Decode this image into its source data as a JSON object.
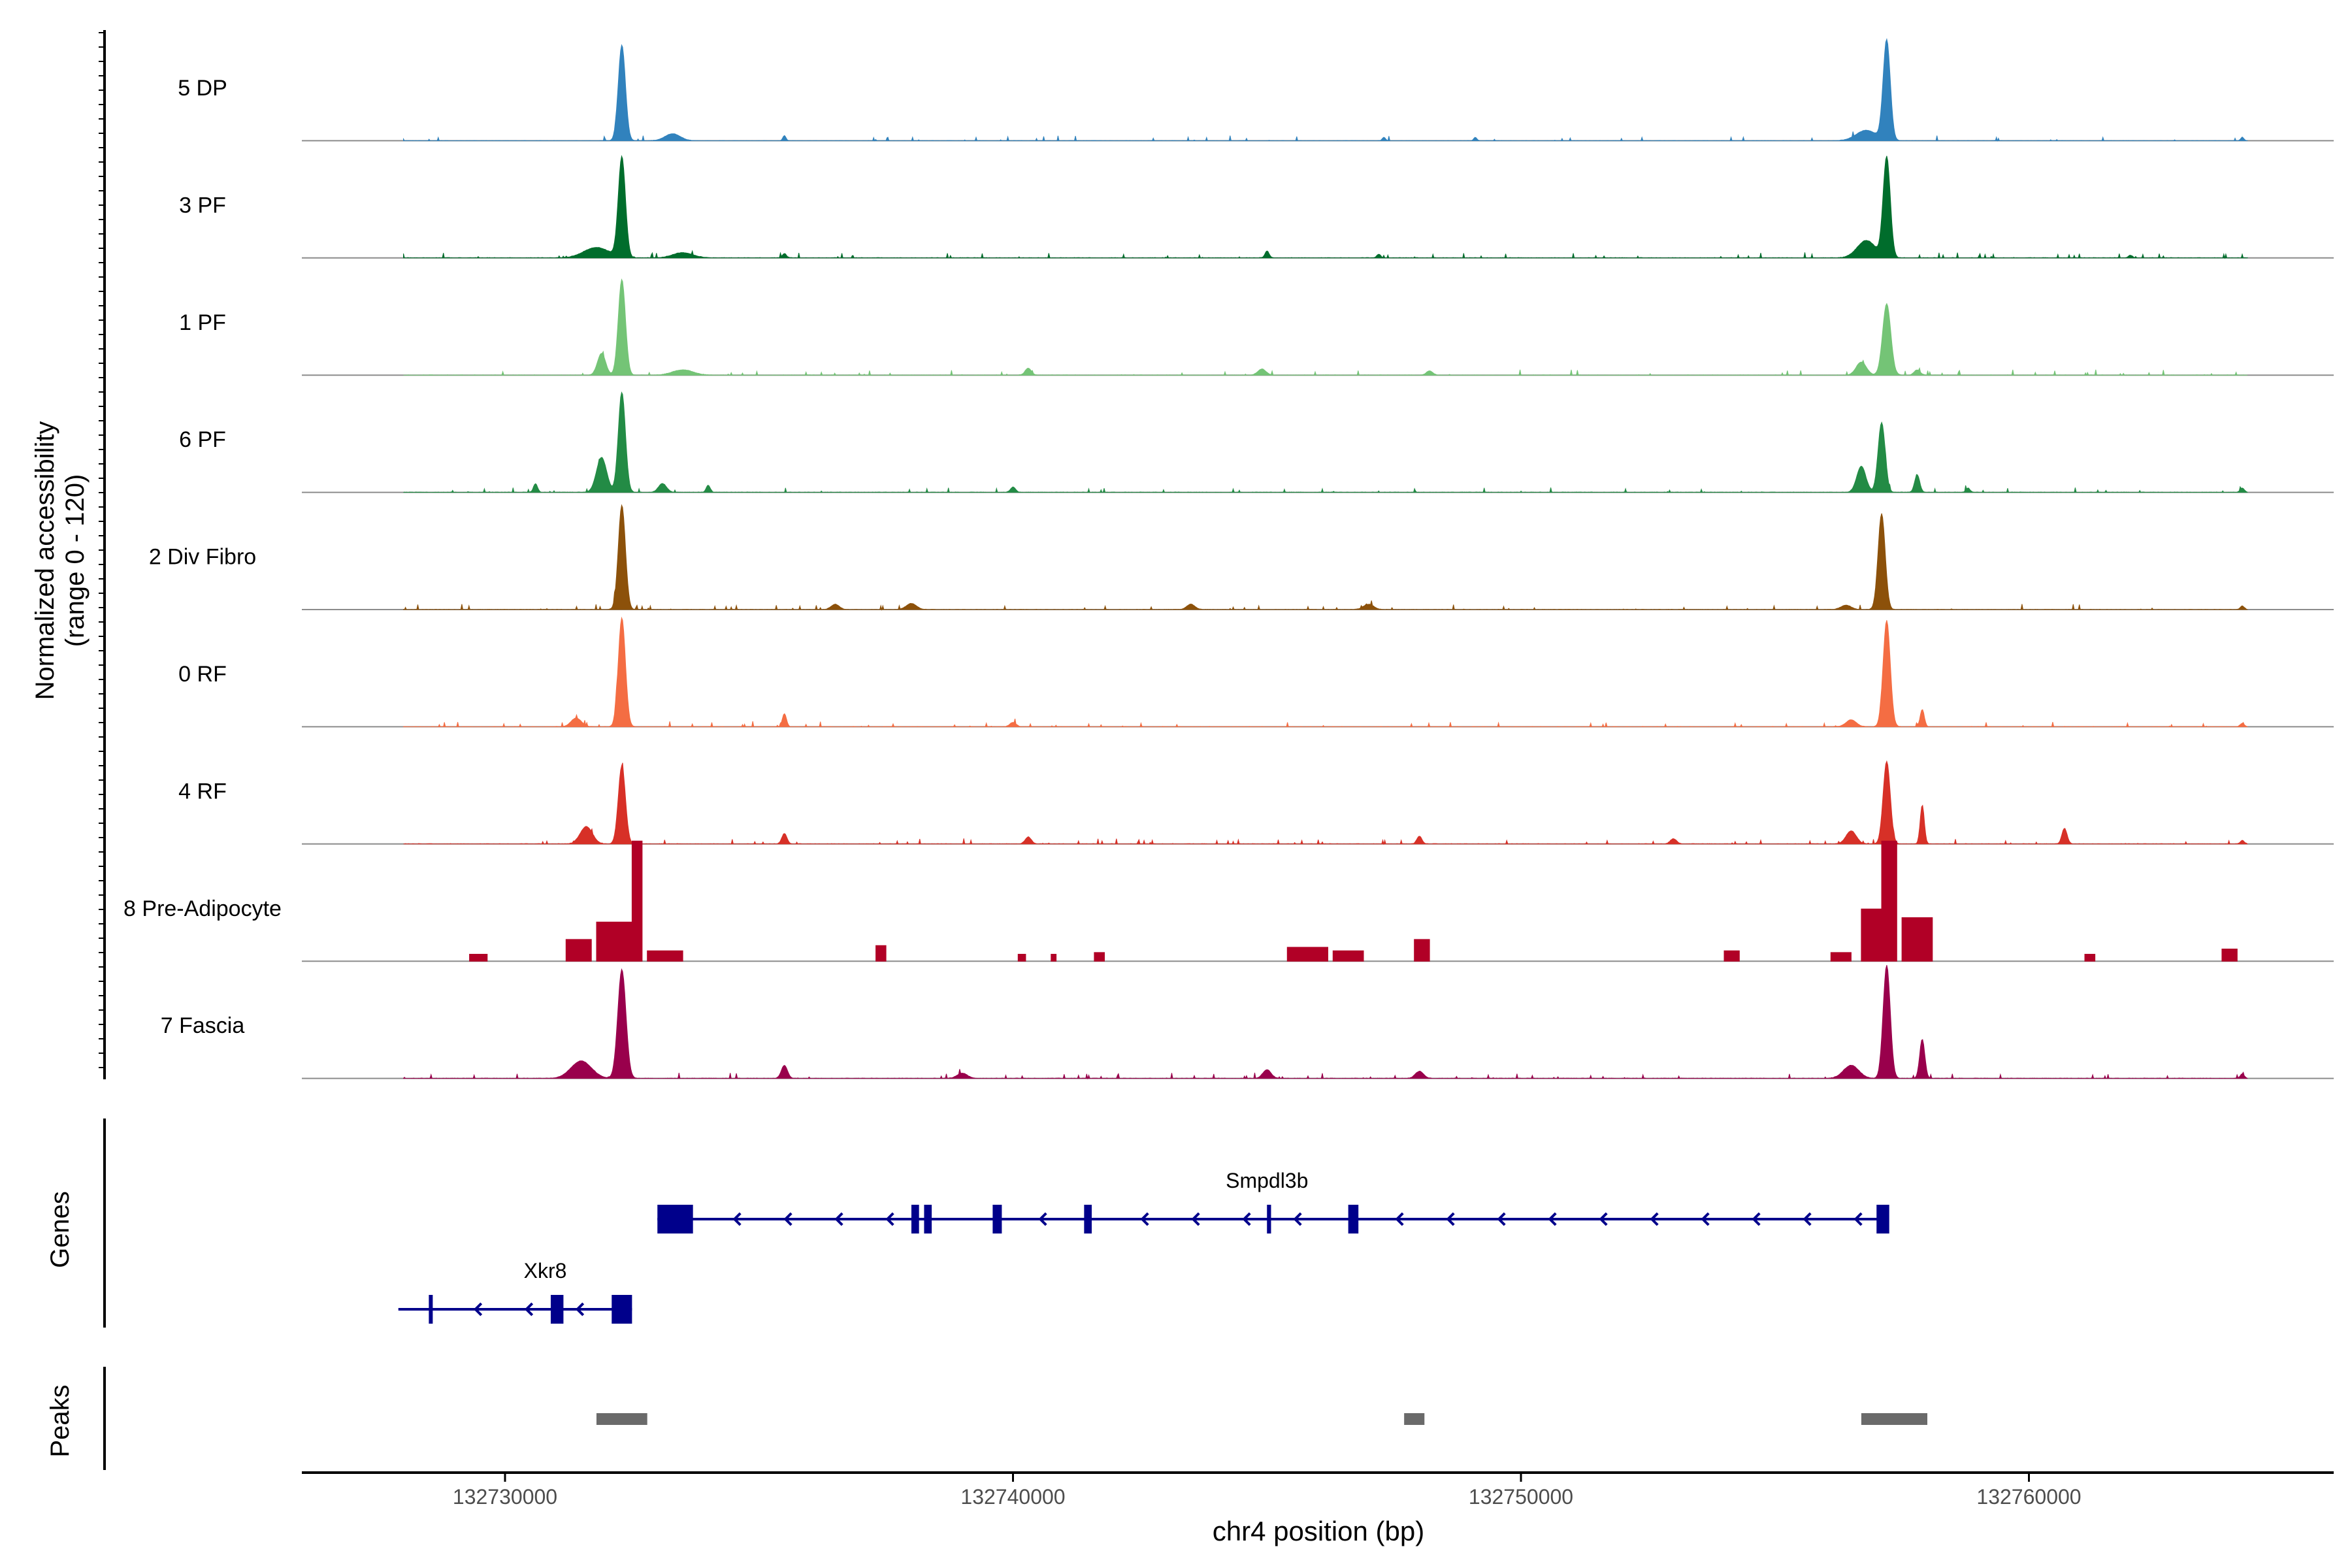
{
  "chart_data": {
    "type": "coverage",
    "title": "",
    "ylabel_line1": "Normalized accessibility",
    "ylabel_line2": "(range 0 - 120)",
    "xlabel": "chr4 position (bp)",
    "xlim": [
      132726000,
      132766000
    ],
    "xticks": [
      132730000,
      132740000,
      132750000,
      132760000
    ],
    "xtick_labels": [
      "132730000",
      "132740000",
      "132750000",
      "132760000"
    ],
    "ylim": [
      0,
      120
    ],
    "tracks": [
      {
        "name": "5 DP",
        "color": "#3182BD",
        "mode": "smooth",
        "noise": 0.04,
        "peaks": [
          [
            132728000,
            2,
            8
          ],
          [
            132732300,
            110,
            70
          ],
          [
            132733300,
            8,
            150
          ],
          [
            132735500,
            6,
            30
          ],
          [
            132747300,
            4,
            30
          ],
          [
            132749100,
            4,
            30
          ],
          [
            132757200,
            115,
            70
          ],
          [
            132756800,
            12,
            200
          ],
          [
            132764200,
            4,
            30
          ]
        ]
      },
      {
        "name": "3 PF",
        "color": "#006D2C",
        "mode": "smooth",
        "noise": 0.06,
        "peaks": [
          [
            132732300,
            115,
            70
          ],
          [
            132731800,
            12,
            250
          ],
          [
            132733500,
            6,
            200
          ],
          [
            132735500,
            5,
            40
          ],
          [
            132745000,
            8,
            40
          ],
          [
            132747200,
            4,
            40
          ],
          [
            132757200,
            115,
            70
          ],
          [
            132756800,
            20,
            180
          ],
          [
            132762000,
            3,
            40
          ]
        ]
      },
      {
        "name": "1 PF",
        "color": "#74C476",
        "mode": "smooth",
        "noise": 0.05,
        "peaks": [
          [
            132732300,
            110,
            70
          ],
          [
            132731900,
            25,
            80
          ],
          [
            132733500,
            6,
            200
          ],
          [
            132740300,
            8,
            60
          ],
          [
            132744900,
            7,
            80
          ],
          [
            132748200,
            5,
            60
          ],
          [
            132757200,
            82,
            80
          ],
          [
            132756700,
            15,
            100
          ],
          [
            132757800,
            6,
            60
          ]
        ]
      },
      {
        "name": "6 PF",
        "color": "#238B45",
        "mode": "smooth",
        "noise": 0.06,
        "peaks": [
          [
            132732300,
            115,
            70
          ],
          [
            132731900,
            40,
            100
          ],
          [
            132733100,
            10,
            80
          ],
          [
            132730600,
            10,
            40
          ],
          [
            132734000,
            8,
            40
          ],
          [
            132740000,
            6,
            50
          ],
          [
            132757100,
            80,
            70
          ],
          [
            132756700,
            30,
            90
          ],
          [
            132757800,
            20,
            50
          ],
          [
            132758800,
            5,
            40
          ],
          [
            132764200,
            5,
            40
          ]
        ]
      },
      {
        "name": "2 Div Fibro",
        "color": "#8C510A",
        "mode": "smooth",
        "noise": 0.05,
        "peaks": [
          [
            132732300,
            120,
            70
          ],
          [
            132736500,
            6,
            80
          ],
          [
            132738000,
            7,
            100
          ],
          [
            132743500,
            6,
            80
          ],
          [
            132747000,
            6,
            100
          ],
          [
            132756400,
            5,
            100
          ],
          [
            132757100,
            110,
            70
          ],
          [
            132764200,
            4,
            40
          ]
        ]
      },
      {
        "name": "0 RF",
        "color": "#F46D43",
        "mode": "smooth",
        "noise": 0.05,
        "peaks": [
          [
            132732300,
            125,
            70
          ],
          [
            132731400,
            10,
            100
          ],
          [
            132735500,
            15,
            40
          ],
          [
            132740000,
            5,
            60
          ],
          [
            132757200,
            122,
            70
          ],
          [
            132756500,
            8,
            100
          ],
          [
            132757900,
            20,
            40
          ],
          [
            132764200,
            4,
            40
          ]
        ]
      },
      {
        "name": "4 RF",
        "color": "#D73027",
        "mode": "smooth",
        "noise": 0.06,
        "peaks": [
          [
            132732300,
            90,
            70
          ],
          [
            132731600,
            20,
            120
          ],
          [
            132735500,
            12,
            50
          ],
          [
            132740300,
            8,
            60
          ],
          [
            132748000,
            9,
            50
          ],
          [
            132753000,
            6,
            60
          ],
          [
            132757200,
            95,
            70
          ],
          [
            132756500,
            15,
            100
          ],
          [
            132757900,
            45,
            40
          ],
          [
            132760700,
            18,
            50
          ],
          [
            132764200,
            4,
            40
          ]
        ]
      },
      {
        "name": "8 Pre-Adipocyte",
        "color": "#B10026",
        "mode": "block",
        "noise": 0,
        "blocks": [
          [
            132729300,
            132729650,
            8
          ],
          [
            132731200,
            132731700,
            25
          ],
          [
            132731800,
            132732500,
            45
          ],
          [
            132732500,
            132732700,
            140
          ],
          [
            132732800,
            132733500,
            12
          ],
          [
            132737300,
            132737500,
            18
          ],
          [
            132740100,
            132740250,
            8
          ],
          [
            132740750,
            132740850,
            8
          ],
          [
            132741600,
            132741800,
            10
          ],
          [
            132745400,
            132746200,
            16
          ],
          [
            132746300,
            132746900,
            12
          ],
          [
            132747900,
            132748200,
            25
          ],
          [
            132754000,
            132754300,
            12
          ],
          [
            132756100,
            132756500,
            10
          ],
          [
            132756700,
            132757100,
            60
          ],
          [
            132757100,
            132757400,
            140
          ],
          [
            132757500,
            132758100,
            50
          ],
          [
            132761100,
            132761300,
            8
          ],
          [
            132763800,
            132764100,
            14
          ]
        ]
      },
      {
        "name": "7 Fascia",
        "color": "#99004C",
        "mode": "smooth",
        "noise": 0.06,
        "peaks": [
          [
            132732300,
            125,
            80
          ],
          [
            132731500,
            20,
            200
          ],
          [
            132735500,
            15,
            60
          ],
          [
            132739000,
            6,
            100
          ],
          [
            132745000,
            10,
            80
          ],
          [
            132748000,
            8,
            80
          ],
          [
            132757200,
            130,
            70
          ],
          [
            132757900,
            45,
            50
          ],
          [
            132756500,
            15,
            150
          ],
          [
            132764200,
            5,
            40
          ]
        ]
      }
    ],
    "genes_label": "Genes",
    "genes": [
      {
        "name": "Smpdl3b",
        "color": "#00008B",
        "strand": "-",
        "row": 0,
        "start": 132733000,
        "end": 132757200,
        "exons": [
          [
            132733000,
            132733700
          ],
          [
            132738000,
            132738150
          ],
          [
            132738250,
            132738400
          ],
          [
            132739600,
            132739780
          ],
          [
            132741400,
            132741550
          ],
          [
            132745000,
            132745080
          ],
          [
            132746600,
            132746800
          ],
          [
            132757000,
            132757250
          ]
        ]
      },
      {
        "name": "Xkr8",
        "color": "#00008B",
        "strand": "-",
        "row": 1,
        "start": 132727900,
        "end": 132732500,
        "exons": [
          [
            132728500,
            132728550
          ],
          [
            132730900,
            132731150
          ],
          [
            132732100,
            132732500
          ]
        ]
      }
    ],
    "peaks_label": "Peaks",
    "peak_regions": [
      [
        132731800,
        132732800
      ],
      [
        132747700,
        132748100
      ],
      [
        132756700,
        132758000
      ]
    ],
    "peak_color": "#6A6A6A"
  }
}
